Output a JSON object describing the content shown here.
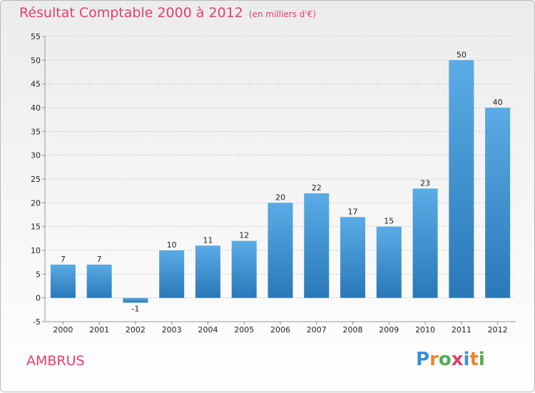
{
  "header": {
    "title": "Résultat Comptable 2000 à 2012",
    "subtitle": "(en milliers d'€)"
  },
  "footer": {
    "commune": "AMBRUS",
    "logo_letters": [
      "P",
      "r",
      "o",
      "x",
      "i",
      "t",
      "i"
    ],
    "logo_colors": [
      "#3a8fd8",
      "#e8872c",
      "#4caf50",
      "#e0406e",
      "#3a8fd8",
      "#e8872c",
      "#4caf50"
    ]
  },
  "colors": {
    "title": "#e0406e",
    "bar_top": "#5aabe6",
    "bar_bottom": "#2a78b8",
    "grid": "#c8c8c8"
  },
  "chart_data": {
    "type": "bar",
    "title": "Résultat Comptable 2000 à 2012",
    "subtitle": "(en milliers d'€)",
    "categories": [
      "2000",
      "2001",
      "2002",
      "2003",
      "2004",
      "2005",
      "2006",
      "2007",
      "2008",
      "2009",
      "2010",
      "2011",
      "2012"
    ],
    "values": [
      7,
      7,
      -1,
      10,
      11,
      12,
      20,
      22,
      17,
      15,
      23,
      50,
      40
    ],
    "value_labels": [
      "7",
      "7",
      "-1",
      "10",
      "11",
      "12",
      "20",
      "22",
      "17",
      "15",
      "23",
      "50",
      "40"
    ],
    "ylim": [
      -5,
      55
    ],
    "yticks": [
      -5,
      0,
      5,
      10,
      15,
      20,
      25,
      30,
      35,
      40,
      45,
      50,
      55
    ],
    "grid": true
  }
}
